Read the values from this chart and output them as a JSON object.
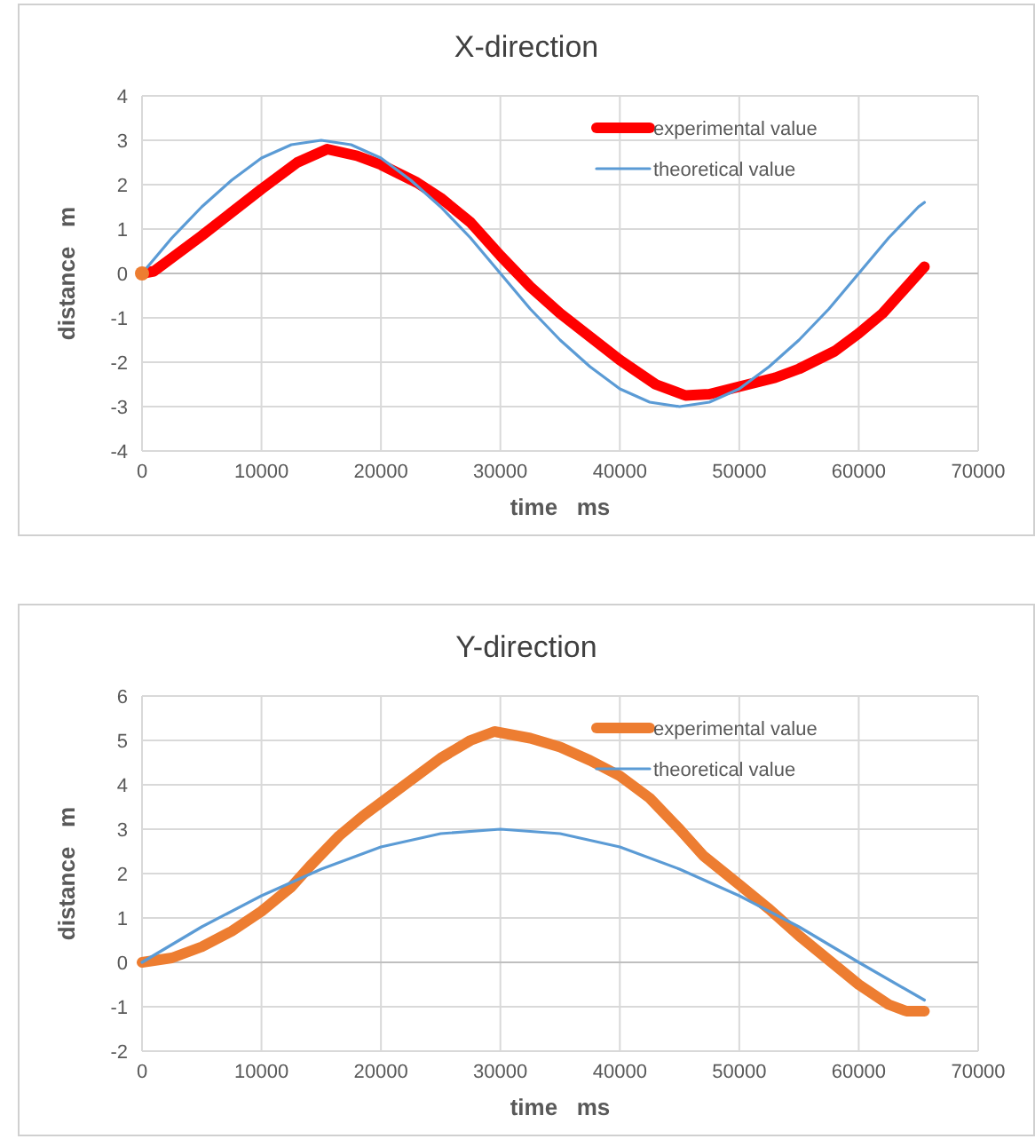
{
  "chart_data": [
    {
      "type": "line",
      "title": "X-direction",
      "xlabel": "time   ms",
      "ylabel": "distance   m",
      "xlim": [
        0,
        70000
      ],
      "ylim": [
        -4,
        4
      ],
      "xticks": [
        0,
        10000,
        20000,
        30000,
        40000,
        50000,
        60000,
        70000
      ],
      "yticks": [
        -4,
        -3,
        -2,
        -1,
        0,
        1,
        2,
        3,
        4
      ],
      "grid": true,
      "legend": "top right",
      "series": [
        {
          "name": "experimental value",
          "color": "#ff0000",
          "x": [
            0,
            1000,
            5000,
            10000,
            13000,
            15500,
            18000,
            20000,
            23000,
            25000,
            27500,
            30000,
            32500,
            35000,
            40000,
            43000,
            45500,
            47500,
            50000,
            53000,
            55000,
            58000,
            60000,
            62000,
            64000,
            65500
          ],
          "values": [
            0,
            0.05,
            0.85,
            1.9,
            2.5,
            2.8,
            2.65,
            2.45,
            2.05,
            1.7,
            1.15,
            0.4,
            -0.3,
            -0.9,
            -1.95,
            -2.5,
            -2.75,
            -2.72,
            -2.55,
            -2.35,
            -2.15,
            -1.75,
            -1.35,
            -0.9,
            -0.3,
            0.15
          ]
        },
        {
          "name": "theoretical value",
          "color": "#5b9bd5",
          "x": [
            0,
            2500,
            5000,
            7500,
            10000,
            12500,
            15000,
            17500,
            20000,
            22500,
            25000,
            27500,
            30000,
            32500,
            35000,
            37500,
            40000,
            42500,
            45000,
            47500,
            50000,
            52500,
            55000,
            57500,
            60000,
            62500,
            65000,
            65500
          ],
          "values": [
            0,
            0.8,
            1.5,
            2.1,
            2.6,
            2.9,
            3,
            2.9,
            2.6,
            2.1,
            1.5,
            0.8,
            0,
            -0.8,
            -1.5,
            -2.1,
            -2.6,
            -2.9,
            -3,
            -2.9,
            -2.6,
            -2.1,
            -1.5,
            -0.8,
            0,
            0.8,
            1.5,
            1.6
          ]
        },
        {
          "type": "scatter",
          "color": "#ed7d31",
          "x": [
            0
          ],
          "values": [
            0
          ]
        }
      ]
    },
    {
      "type": "line",
      "title": "Y-direction",
      "xlabel": "time   ms",
      "ylabel": "distance   m",
      "xlim": [
        0,
        70000
      ],
      "ylim": [
        -2,
        6
      ],
      "xticks": [
        0,
        10000,
        20000,
        30000,
        40000,
        50000,
        60000,
        70000
      ],
      "yticks": [
        -2,
        -1,
        0,
        1,
        2,
        3,
        4,
        5,
        6
      ],
      "grid": true,
      "legend": "top right",
      "series": [
        {
          "name": "experimental value",
          "color": "#ed7d31",
          "x": [
            0,
            2500,
            5000,
            7500,
            10000,
            12500,
            14000,
            16500,
            18500,
            20000,
            22500,
            25000,
            27500,
            29500,
            32500,
            35000,
            37500,
            40000,
            42500,
            45000,
            47000,
            50000,
            52500,
            55000,
            57500,
            60000,
            62500,
            64000,
            65500
          ],
          "values": [
            0,
            0.1,
            0.35,
            0.7,
            1.15,
            1.7,
            2.15,
            2.85,
            3.3,
            3.6,
            4.1,
            4.6,
            5,
            5.2,
            5.05,
            4.85,
            4.55,
            4.2,
            3.7,
            3,
            2.4,
            1.75,
            1.2,
            0.6,
            0.05,
            -0.5,
            -0.95,
            -1.1,
            -1.1
          ]
        },
        {
          "name": "theoretical value",
          "color": "#5b9bd5",
          "x": [
            0,
            5000,
            10000,
            15000,
            20000,
            25000,
            30000,
            35000,
            40000,
            45000,
            50000,
            55000,
            60000,
            65500
          ],
          "values": [
            0,
            0.8,
            1.5,
            2.1,
            2.6,
            2.9,
            3,
            2.9,
            2.6,
            2.1,
            1.5,
            0.8,
            0,
            -0.85
          ]
        }
      ]
    }
  ]
}
